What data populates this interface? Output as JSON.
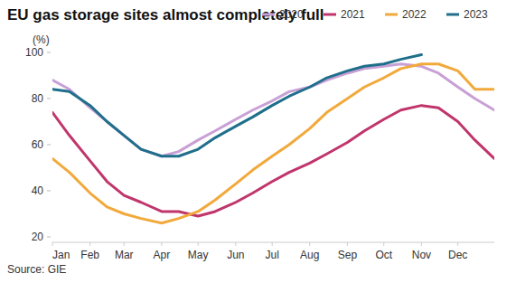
{
  "chart_data": {
    "type": "line",
    "title": "EU gas storage sites almost completely full",
    "y_label": "(%)",
    "source": "Source: GIE",
    "x": [
      1,
      15,
      32,
      46,
      60,
      74,
      91,
      105,
      121,
      135,
      152,
      166,
      182,
      196,
      213,
      227,
      244,
      258,
      274,
      288,
      305,
      319,
      335,
      349,
      365
    ],
    "xlim": [
      1,
      365
    ],
    "xticks": [
      {
        "value": 1,
        "label": "Jan"
      },
      {
        "value": 32,
        "label": "Feb"
      },
      {
        "value": 60,
        "label": "Mar"
      },
      {
        "value": 91,
        "label": "Apr"
      },
      {
        "value": 121,
        "label": "May"
      },
      {
        "value": 152,
        "label": "Jun"
      },
      {
        "value": 182,
        "label": "Jul"
      },
      {
        "value": 213,
        "label": "Aug"
      },
      {
        "value": 244,
        "label": "Sep"
      },
      {
        "value": 274,
        "label": "Oct"
      },
      {
        "value": 305,
        "label": "Nov"
      },
      {
        "value": 335,
        "label": "Dec"
      }
    ],
    "ylim": [
      20,
      100
    ],
    "yticks": [
      20,
      40,
      60,
      80,
      100
    ],
    "grid": false,
    "legend": "top-right",
    "series": [
      {
        "name": "2020",
        "color": "#c9a0d6",
        "values": [
          88,
          84,
          76,
          70,
          64,
          58,
          55,
          57,
          62,
          66,
          71,
          75,
          79,
          83,
          85,
          88,
          91,
          93,
          94,
          95,
          94,
          91,
          85,
          80,
          75
        ]
      },
      {
        "name": "2021",
        "color": "#c0356b",
        "values": [
          74,
          64,
          53,
          44,
          38,
          35,
          31,
          31,
          29,
          31,
          35,
          39,
          44,
          48,
          52,
          56,
          61,
          66,
          71,
          75,
          77,
          76,
          70,
          62,
          54
        ]
      },
      {
        "name": "2022",
        "color": "#f2a93b",
        "values": [
          54,
          48,
          39,
          33,
          30,
          28,
          26,
          28,
          31,
          36,
          43,
          49,
          55,
          60,
          67,
          74,
          80,
          85,
          89,
          93,
          95,
          95,
          92,
          84,
          84
        ]
      },
      {
        "name": "2023",
        "color": "#1f6f8b",
        "values": [
          84,
          83,
          77,
          70,
          64,
          58,
          55,
          55,
          58,
          63,
          68,
          72,
          77,
          81,
          85,
          89,
          92,
          94,
          95,
          97,
          99,
          null,
          null,
          null,
          null
        ]
      }
    ]
  }
}
